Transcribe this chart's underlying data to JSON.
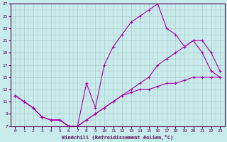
{
  "xlabel": "Windchill (Refroidissement éolien,°C)",
  "xlim": [
    -0.5,
    23.5
  ],
  "ylim": [
    7,
    27
  ],
  "yticks": [
    7,
    9,
    11,
    13,
    15,
    17,
    19,
    21,
    23,
    25,
    27
  ],
  "xticks": [
    0,
    1,
    2,
    3,
    4,
    5,
    6,
    7,
    8,
    9,
    10,
    11,
    12,
    13,
    14,
    15,
    16,
    17,
    18,
    19,
    20,
    21,
    22,
    23
  ],
  "bg_color": "#c8ecec",
  "grid_color": "#b0c8c8",
  "line_color": "#aa00aa",
  "line1_y": [
    12,
    11,
    10,
    8.5,
    8,
    8,
    7,
    7,
    14,
    10,
    17,
    20,
    22,
    24,
    25,
    26,
    27,
    23,
    22,
    20,
    21,
    19,
    16,
    15
  ],
  "line2_y": [
    12,
    11,
    10,
    8.5,
    8,
    8,
    7,
    7,
    8,
    9,
    10,
    11,
    12,
    13,
    14,
    15,
    17,
    18,
    19,
    20,
    21,
    21,
    19,
    16
  ],
  "line3_y": [
    12,
    11,
    10,
    8.5,
    8,
    8,
    7,
    7,
    8,
    9,
    10,
    11,
    12,
    12.5,
    13,
    13,
    13.5,
    14,
    14,
    14.5,
    15,
    15,
    15,
    15
  ]
}
